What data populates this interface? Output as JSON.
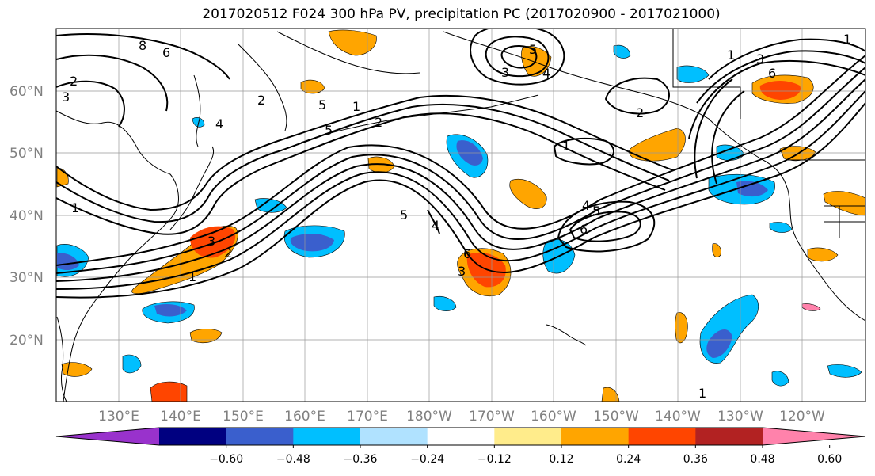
{
  "title": "2017020512 F024 300 hPa PV, precipitation PC (2017020900 - 2017021000)",
  "map": {
    "lat_labels": [
      "60°N",
      "50°N",
      "40°N",
      "30°N",
      "20°N"
    ],
    "lon_labels": [
      "130°E",
      "140°E",
      "150°E",
      "160°E",
      "170°E",
      "180°W",
      "170°W",
      "160°W",
      "150°W",
      "140°W",
      "130°W",
      "120°W"
    ],
    "pv_contour_labels": [
      "8",
      "6",
      "2",
      "3",
      "2",
      "4",
      "5",
      "1",
      "2",
      "5",
      "1",
      "2",
      "3",
      "1",
      "3",
      "6",
      "5",
      "4",
      "5",
      "6",
      "5",
      "4",
      "4",
      "1",
      "3",
      "2",
      "3",
      "6",
      "1",
      "1",
      "1"
    ]
  },
  "colorbar": {
    "colors": [
      "#9932cc",
      "#000080",
      "#3a5fcd",
      "#00bfff",
      "#b0e2ff",
      "#ffffff",
      "#ffec8b",
      "#ffa500",
      "#ff4500",
      "#b22222",
      "#ff82ab"
    ],
    "tick_labels": [
      "−0.60",
      "−0.48",
      "−0.36",
      "−0.24",
      "−0.12",
      "0.12",
      "0.24",
      "0.36",
      "0.48",
      "0.60"
    ]
  }
}
